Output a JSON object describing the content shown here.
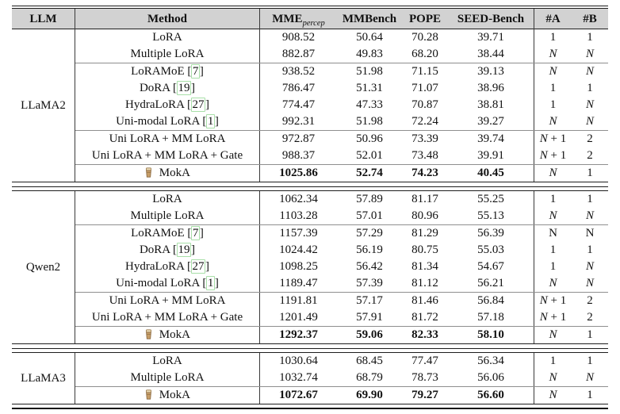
{
  "colors": {
    "header_bg": "#d2d2d2",
    "citation_box": "#a8dfa8"
  },
  "table": {
    "header": {
      "llm": "LLM",
      "method": "Method",
      "mme_main": "MME",
      "mme_sub": "percep",
      "mmbench": "MMBench",
      "pope": "POPE",
      "seed": "SEED-Bench",
      "a": "#A",
      "b": "#B"
    },
    "groups": [
      {
        "llm": "LLaMA2",
        "subgroups": [
          {
            "rows": [
              {
                "method": "LoRA",
                "mme": "908.52",
                "mmbench": "50.64",
                "pope": "70.28",
                "seed": "39.71",
                "a": "1",
                "b": "1"
              },
              {
                "method": "Multiple LoRA",
                "mme": "882.87",
                "mmbench": "49.83",
                "pope": "68.20",
                "seed": "38.44",
                "a": "N",
                "b": "N"
              }
            ]
          },
          {
            "rows": [
              {
                "method": "LoRAMoE",
                "cite": "7",
                "mme": "938.52",
                "mmbench": "51.98",
                "pope": "71.15",
                "seed": "39.13",
                "a": "N",
                "b": "N"
              },
              {
                "method": "DoRA",
                "cite": "19",
                "mme": "786.47",
                "mmbench": "51.31",
                "pope": "71.07",
                "seed": "38.96",
                "a": "1",
                "b": "1"
              },
              {
                "method": "HydraLoRA",
                "cite": "27",
                "mme": "774.47",
                "mmbench": "47.33",
                "pope": "70.87",
                "seed": "38.81",
                "a": "1",
                "b": "N"
              },
              {
                "method": "Uni-modal LoRA",
                "cite": "1",
                "mme": "992.31",
                "mmbench": "51.98",
                "pope": "72.24",
                "seed": "39.27",
                "a": "N",
                "b": "N"
              }
            ]
          },
          {
            "rows": [
              {
                "method": "Uni LoRA + MM LoRA",
                "mme": "972.87",
                "mmbench": "50.96",
                "pope": "73.39",
                "seed": "39.74",
                "a": "N + 1",
                "b": "2"
              },
              {
                "method": "Uni LoRA + MM LoRA + Gate",
                "mme": "988.37",
                "mmbench": "52.01",
                "pope": "73.48",
                "seed": "39.91",
                "a": "N + 1",
                "b": "2"
              }
            ]
          },
          {
            "rows": [
              {
                "method": "MokA",
                "moka": true,
                "bold": true,
                "mme": "1025.86",
                "mmbench": "52.74",
                "pope": "74.23",
                "seed": "40.45",
                "a": "N",
                "b": "1"
              }
            ]
          }
        ]
      },
      {
        "llm": "Qwen2",
        "subgroups": [
          {
            "rows": [
              {
                "method": "LoRA",
                "mme": "1062.34",
                "mmbench": "57.89",
                "pope": "81.17",
                "seed": "55.25",
                "a": "1",
                "b": "1"
              },
              {
                "method": "Multiple LoRA",
                "mme": "1103.28",
                "mmbench": "57.01",
                "pope": "80.96",
                "seed": "55.13",
                "a": "N",
                "b": "N"
              }
            ]
          },
          {
            "rows": [
              {
                "method": "LoRAMoE",
                "cite": "7",
                "mme": "1157.39",
                "mmbench": "57.29",
                "pope": "81.29",
                "seed": "56.39",
                "a": "N",
                "b": "N",
                "ab_upright": true
              },
              {
                "method": "DoRA",
                "cite": "19",
                "mme": "1024.42",
                "mmbench": "56.19",
                "pope": "80.75",
                "seed": "55.03",
                "a": "1",
                "b": "1"
              },
              {
                "method": "HydraLoRA",
                "cite": "27",
                "mme": "1098.25",
                "mmbench": "56.42",
                "pope": "81.34",
                "seed": "54.67",
                "a": "1",
                "b": "N"
              },
              {
                "method": "Uni-modal LoRA",
                "cite": "1",
                "mme": "1189.47",
                "mmbench": "57.39",
                "pope": "81.12",
                "seed": "56.21",
                "a": "N",
                "b": "N"
              }
            ]
          },
          {
            "rows": [
              {
                "method": "Uni LoRA + MM LoRA",
                "mme": "1191.81",
                "mmbench": "57.17",
                "pope": "81.46",
                "seed": "56.84",
                "a": "N + 1",
                "b": "2"
              },
              {
                "method": "Uni LoRA + MM LoRA + Gate",
                "mme": "1201.49",
                "mmbench": "57.91",
                "pope": "81.72",
                "seed": "57.18",
                "a": "N + 1",
                "b": "2"
              }
            ]
          },
          {
            "rows": [
              {
                "method": "MokA",
                "moka": true,
                "bold": true,
                "mme": "1292.37",
                "mmbench": "59.06",
                "pope": "82.33",
                "seed": "58.10",
                "a": "N",
                "b": "1"
              }
            ]
          }
        ]
      },
      {
        "llm": "LLaMA3",
        "subgroups": [
          {
            "rows": [
              {
                "method": "LoRA",
                "mme": "1030.64",
                "mmbench": "68.45",
                "pope": "77.47",
                "seed": "56.34",
                "a": "1",
                "b": "1"
              },
              {
                "method": "Multiple LoRA",
                "mme": "1032.74",
                "mmbench": "68.79",
                "pope": "78.73",
                "seed": "56.06",
                "a": "N",
                "b": "N"
              }
            ]
          },
          {
            "rows": [
              {
                "method": "MokA",
                "moka": true,
                "bold": true,
                "mme": "1072.67",
                "mmbench": "69.90",
                "pope": "79.27",
                "seed": "56.60",
                "a": "N",
                "b": "1"
              }
            ]
          }
        ]
      }
    ]
  }
}
